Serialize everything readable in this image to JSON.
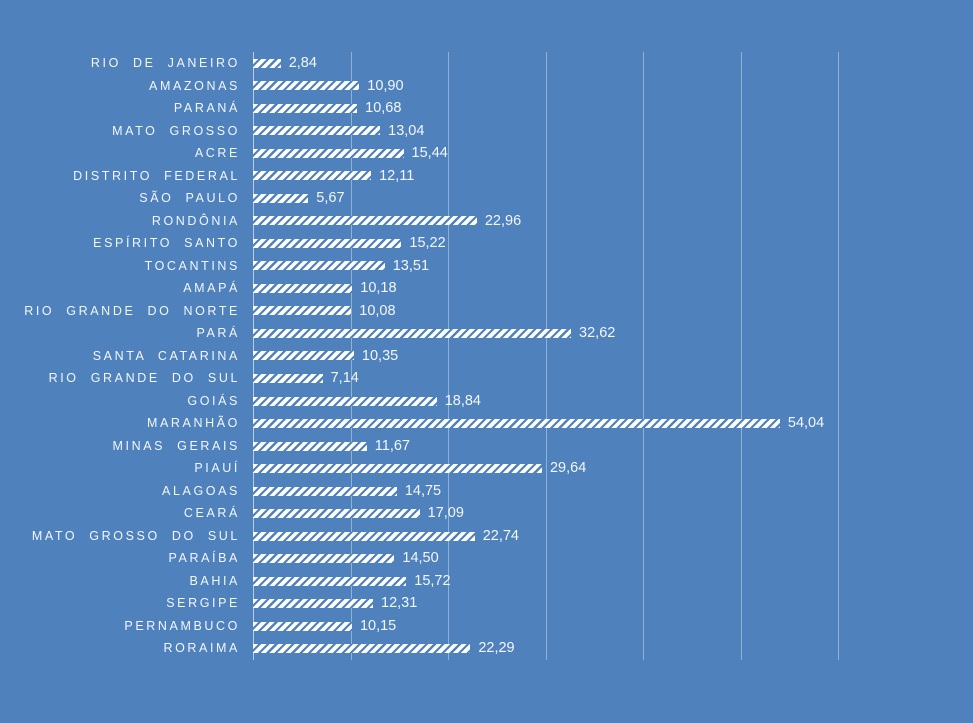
{
  "chart_data": {
    "type": "bar",
    "orientation": "horizontal",
    "grid": true,
    "legend": false,
    "bar_pattern": "white-diagonal-hatch",
    "xlim": [
      0,
      60
    ],
    "gridline_step": 10,
    "categories": [
      "RIO DE JANEIRO",
      "AMAZONAS",
      "PARANÁ",
      "MATO GROSSO",
      "ACRE",
      "DISTRITO FEDERAL",
      "SÃO PAULO",
      "RONDÔNIA",
      "ESPÍRITO SANTO",
      "TOCANTINS",
      "AMAPÁ",
      "RIO GRANDE DO NORTE",
      "PARÁ",
      "SANTA CATARINA",
      "RIO GRANDE DO SUL",
      "GOIÁS",
      "MARANHÃO",
      "MINAS GERAIS",
      "PIAUÍ",
      "ALAGOAS",
      "CEARÁ",
      "MATO GROSSO DO SUL",
      "PARAÍBA",
      "BAHIA",
      "SERGIPE",
      "PERNAMBUCO",
      "RORAIMA"
    ],
    "values": [
      2.84,
      10.9,
      10.68,
      13.04,
      15.44,
      12.11,
      5.67,
      22.96,
      15.22,
      13.51,
      10.18,
      10.08,
      32.62,
      10.35,
      7.14,
      18.84,
      54.04,
      11.67,
      29.64,
      14.75,
      17.09,
      22.74,
      14.5,
      15.72,
      12.31,
      10.15,
      22.29
    ],
    "value_labels": [
      "2,84",
      "10,90",
      "10,68",
      "13,04",
      "15,44",
      "12,11",
      "5,67",
      "22,96",
      "15,22",
      "13,51",
      "10,18",
      "10,08",
      "32,62",
      "10,35",
      "7,14",
      "18,84",
      "54,04",
      "11,67",
      "29,64",
      "14,75",
      "17,09",
      "22,74",
      "14,50",
      "15,72",
      "12,31",
      "10,15",
      "22,29"
    ],
    "colors": {
      "background": "#4f81bd",
      "gridline": "rgba(255,255,255,0.38)",
      "axis_line": "rgba(255,255,255,0.60)",
      "text": "#f2f7fc",
      "bar_fill": "#ffffff"
    }
  }
}
